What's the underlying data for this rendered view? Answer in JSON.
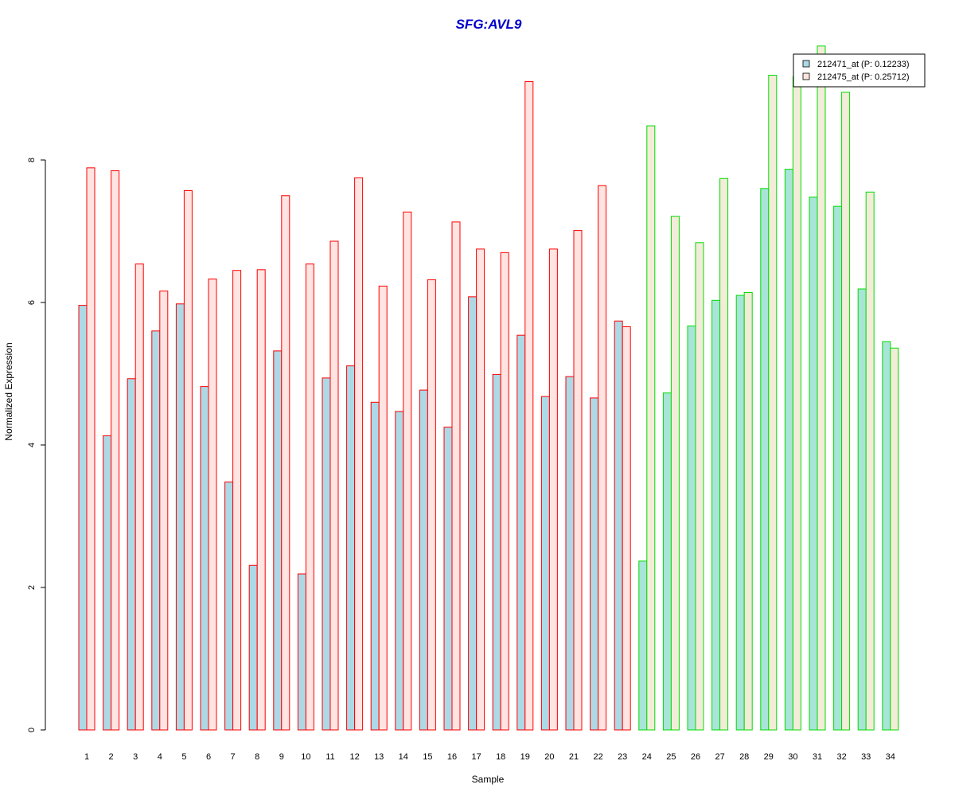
{
  "chart_data": {
    "type": "bar",
    "title": "SFG:AVL9",
    "xlabel": "Sample",
    "ylabel": "Normalized Expression",
    "ylim": [
      0,
      10
    ],
    "yticks": [
      0,
      2,
      4,
      6,
      8
    ],
    "grid": false,
    "legend_position": "top-right",
    "categories": [
      "1",
      "2",
      "3",
      "4",
      "5",
      "6",
      "7",
      "8",
      "9",
      "10",
      "11",
      "12",
      "13",
      "14",
      "15",
      "16",
      "17",
      "18",
      "19",
      "20",
      "21",
      "22",
      "23",
      "24",
      "25",
      "26",
      "27",
      "28",
      "29",
      "30",
      "31",
      "32",
      "33",
      "34"
    ],
    "series": [
      {
        "name": "212471_at (P: 0.12233)",
        "values": [
          5.96,
          4.13,
          4.93,
          5.6,
          5.98,
          4.82,
          3.48,
          2.31,
          5.32,
          2.19,
          4.94,
          5.11,
          4.6,
          4.47,
          4.77,
          4.25,
          6.08,
          4.99,
          5.54,
          4.68,
          4.96,
          4.66,
          5.74,
          2.37,
          4.73,
          5.67,
          6.03,
          6.1,
          7.6,
          7.87,
          7.48,
          7.35,
          6.19,
          5.45
        ]
      },
      {
        "name": "212475_at (P: 0.25712)",
        "values": [
          7.89,
          7.85,
          6.54,
          6.16,
          7.57,
          6.33,
          6.45,
          6.46,
          7.5,
          6.54,
          6.86,
          7.75,
          6.23,
          7.27,
          6.32,
          7.13,
          6.75,
          6.7,
          9.1,
          6.75,
          7.01,
          7.64,
          5.66,
          8.48,
          7.21,
          6.84,
          7.74,
          6.14,
          9.19,
          9.17,
          9.6,
          8.95,
          7.55,
          5.36
        ]
      }
    ],
    "group_split_index": 23,
    "colors": {
      "series1_fill_group1": "#add8e6",
      "series2_fill_group1": "#ffe4e1",
      "border_group1": "#ff0000",
      "series1_fill_group2": "#a8e4d8",
      "series2_fill_group2": "#f3ecd8",
      "border_group2": "#00dd00",
      "title_color": "#0000cc",
      "legend_swatch_1": "#add8e6",
      "legend_swatch_2": "#ffe4e1"
    }
  }
}
